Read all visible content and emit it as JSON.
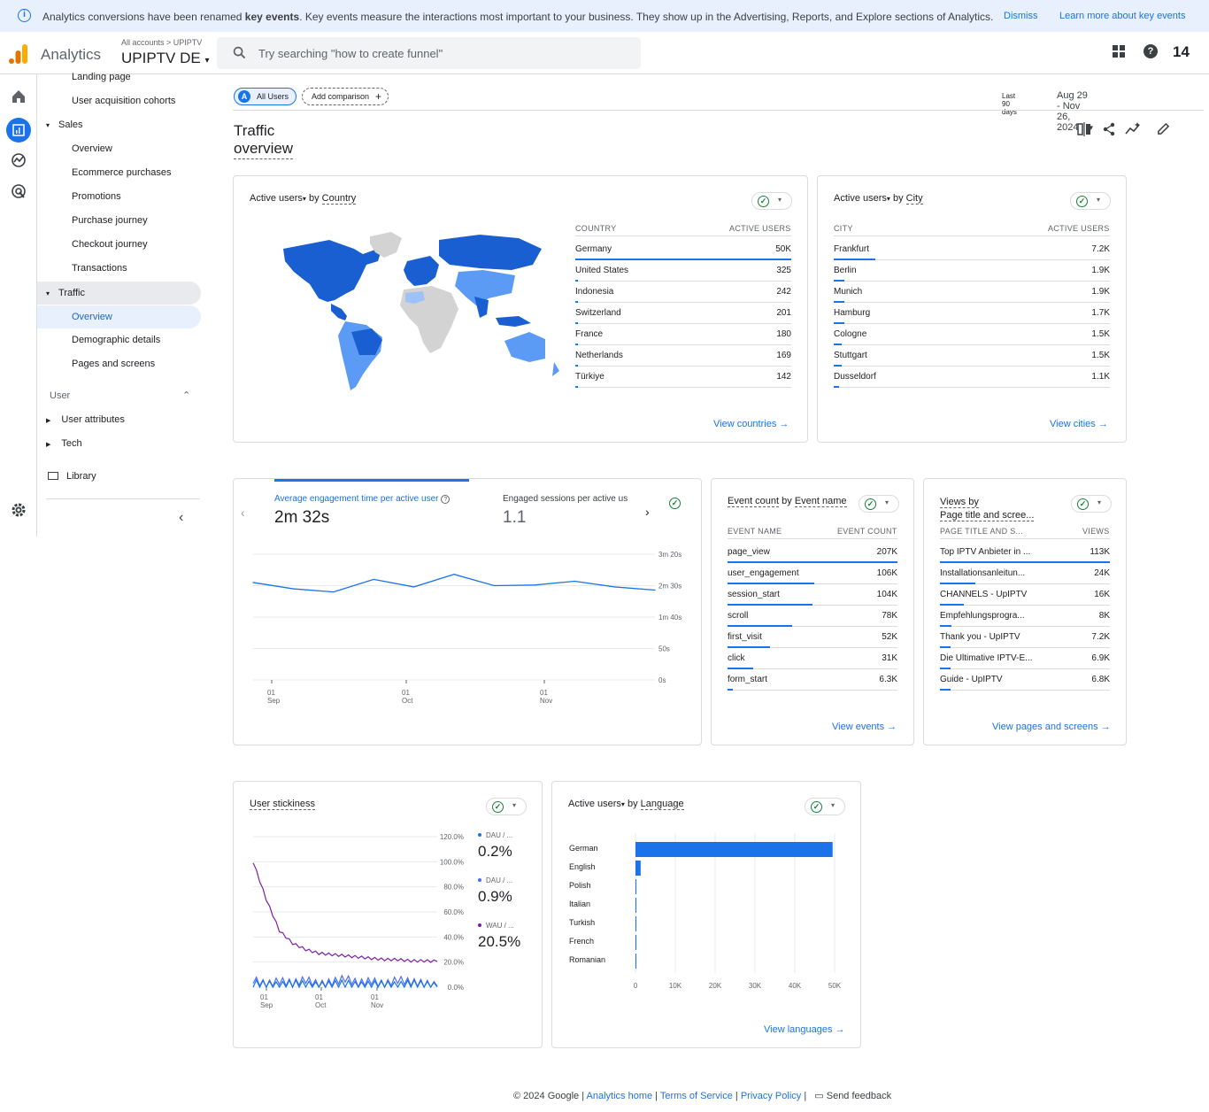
{
  "banner": {
    "text_pre": "Analytics conversions have been renamed ",
    "text_bold": "key events",
    "text_post": ". Key events measure the interactions most important to your business. They show up in the Advertising, Reports, and Explore sections of Analytics.",
    "dismiss": "Dismiss",
    "learn_more": "Learn more about key events"
  },
  "header": {
    "brand": "Analytics",
    "breadcrumb": "All accounts  >  UPIPTV",
    "property": "UPIPTV DE",
    "search_placeholder": "Try searching \"how to create funnel\"",
    "notification_count": "14"
  },
  "nav": {
    "landing_page": "Landing page",
    "user_acq": "User acquisition cohorts",
    "sales": "Sales",
    "sales_overview": "Overview",
    "ecommerce": "Ecommerce purchases",
    "promotions": "Promotions",
    "purchase_journey": "Purchase journey",
    "checkout_journey": "Checkout journey",
    "transactions": "Transactions",
    "traffic": "Traffic",
    "traffic_overview": "Overview",
    "demographic": "Demographic details",
    "pages_screens": "Pages and screens",
    "user_section": "User",
    "user_attributes": "User attributes",
    "tech": "Tech",
    "library": "Library"
  },
  "toolbar": {
    "all_users": "All Users",
    "all_users_badge": "A",
    "add_comparison": "Add comparison",
    "date_label": "Last 90 days",
    "date_range": "Aug 29 - Nov 26, 2024"
  },
  "page": {
    "title": "Traffic overview"
  },
  "country_card": {
    "title_metric": "Active users",
    "title_by": " by ",
    "title_dim": "Country",
    "col1": "COUNTRY",
    "col2": "ACTIVE USERS",
    "rows": [
      {
        "n": "Germany",
        "v": "50K",
        "p": 1.0
      },
      {
        "n": "United States",
        "v": "325",
        "p": 0.01
      },
      {
        "n": "Indonesia",
        "v": "242",
        "p": 0.01
      },
      {
        "n": "Switzerland",
        "v": "201",
        "p": 0.01
      },
      {
        "n": "France",
        "v": "180",
        "p": 0.01
      },
      {
        "n": "Netherlands",
        "v": "169",
        "p": 0.01
      },
      {
        "n": "Türkiye",
        "v": "142",
        "p": 0.01
      }
    ],
    "link": "View countries"
  },
  "city_card": {
    "title_metric": "Active users",
    "title_by": " by ",
    "title_dim": "City",
    "col1": "CITY",
    "col2": "ACTIVE USERS",
    "rows": [
      {
        "n": "Frankfurt",
        "v": "7.2K",
        "p": 0.15
      },
      {
        "n": "Berlin",
        "v": "1.9K",
        "p": 0.04
      },
      {
        "n": "Munich",
        "v": "1.9K",
        "p": 0.04
      },
      {
        "n": "Hamburg",
        "v": "1.7K",
        "p": 0.04
      },
      {
        "n": "Cologne",
        "v": "1.5K",
        "p": 0.03
      },
      {
        "n": "Stuttgart",
        "v": "1.5K",
        "p": 0.03
      },
      {
        "n": "Dusseldorf",
        "v": "1.1K",
        "p": 0.02
      }
    ],
    "link": "View cities"
  },
  "engagement_card": {
    "metric1": "Average engagement time per active user",
    "value1": "2m 32s",
    "metric2": "Engaged sessions per active us",
    "value2": "1.1"
  },
  "event_card": {
    "title_metric": "Event count",
    "title_by": " by ",
    "title_dim": "Event name",
    "col1": "EVENT NAME",
    "col2": "EVENT COUNT",
    "rows": [
      {
        "n": "page_view",
        "v": "207K",
        "p": 1.0
      },
      {
        "n": "user_engagement",
        "v": "106K",
        "p": 0.51
      },
      {
        "n": "session_start",
        "v": "104K",
        "p": 0.5
      },
      {
        "n": "scroll",
        "v": "78K",
        "p": 0.38
      },
      {
        "n": "first_visit",
        "v": "52K",
        "p": 0.25
      },
      {
        "n": "click",
        "v": "31K",
        "p": 0.15
      },
      {
        "n": "form_start",
        "v": "6.3K",
        "p": 0.03
      }
    ],
    "link": "View events"
  },
  "views_card": {
    "title_line1": "Views by",
    "title_line2": "Page title and scree...",
    "col1": "PAGE TITLE AND S...",
    "col2": "VIEWS",
    "rows": [
      {
        "n": "Top IPTV Anbieter in ...",
        "v": "113K",
        "p": 1.0
      },
      {
        "n": "Installationsanleitun...",
        "v": "24K",
        "p": 0.21
      },
      {
        "n": "CHANNELS - UpIPTV",
        "v": "16K",
        "p": 0.14
      },
      {
        "n": "Empfehlungsprogra...",
        "v": "8K",
        "p": 0.07
      },
      {
        "n": "Thank you - UpIPTV",
        "v": "7.2K",
        "p": 0.06
      },
      {
        "n": "Die Ultimative IPTV-E...",
        "v": "6.9K",
        "p": 0.06
      },
      {
        "n": "Guide - UpIPTV",
        "v": "6.8K",
        "p": 0.06
      }
    ],
    "link": "View pages and screens"
  },
  "stickiness_card": {
    "title": "User stickiness",
    "legend": [
      {
        "label": "DAU / ...",
        "value": "0.2%",
        "color": "#1a73e8"
      },
      {
        "label": "DAU / ...",
        "value": "0.9%",
        "color": "#4c6ef5"
      },
      {
        "label": "WAU / ...",
        "value": "20.5%",
        "color": "#7b1fa2"
      }
    ]
  },
  "language_card": {
    "title_metric": "Active users",
    "title_by": " by ",
    "title_dim": "Language",
    "link": "View languages"
  },
  "chart_data": [
    {
      "type": "line",
      "title": "Average engagement time per active user",
      "x": [
        "Aug 29",
        "Sep 7",
        "Sep 16",
        "Sep 25",
        "Oct 4",
        "Oct 13",
        "Oct 22",
        "Oct 31",
        "Nov 9",
        "Nov 18",
        "Nov 26"
      ],
      "values": [
        155,
        145,
        140,
        160,
        148,
        168,
        150,
        151,
        157,
        148,
        143
      ],
      "ytick_labels": [
        "3m 20s",
        "2m 30s",
        "1m 40s",
        "50s",
        "0s"
      ],
      "xtick_labels": [
        {
          "d": "01",
          "m": "Sep"
        },
        {
          "d": "01",
          "m": "Oct"
        },
        {
          "d": "01",
          "m": "Nov"
        }
      ],
      "ylim": [
        0,
        200
      ],
      "color": "#1a73e8"
    },
    {
      "type": "line",
      "title": "User stickiness",
      "ytick_labels": [
        "120.0%",
        "100.0%",
        "80.0%",
        "60.0%",
        "40.0%",
        "20.0%",
        "0.0%"
      ],
      "xtick_labels": [
        {
          "d": "01",
          "m": "Sep"
        },
        {
          "d": "01",
          "m": "Oct"
        },
        {
          "d": "01",
          "m": "Nov"
        }
      ],
      "ylim": [
        0,
        120
      ],
      "series": [
        {
          "name": "WAU / MAU",
          "color": "#7b1fa2",
          "values": [
            100,
            70,
            45,
            35,
            30,
            27,
            26,
            25,
            24,
            23,
            22,
            22,
            21,
            21,
            20.5
          ]
        },
        {
          "name": "DAU / MAU",
          "color": "#4c6ef5",
          "values": [
            6,
            2,
            5,
            3,
            6,
            2,
            4,
            7,
            3,
            5,
            2,
            6,
            4,
            3,
            0.9
          ]
        },
        {
          "name": "DAU / WAU",
          "color": "#1a73e8",
          "values": [
            3,
            2,
            1,
            3,
            2,
            1,
            2,
            3,
            1,
            2,
            2,
            1,
            3,
            2,
            0.2
          ]
        }
      ]
    },
    {
      "type": "bar",
      "title": "Active users by Language",
      "categories": [
        "German",
        "English",
        "Polish",
        "Italian",
        "Turkish",
        "French",
        "Romanian"
      ],
      "values": [
        49500,
        1300,
        120,
        90,
        70,
        60,
        40
      ],
      "xtick_labels": [
        "0",
        "10K",
        "20K",
        "30K",
        "40K",
        "50K"
      ],
      "xlim": [
        0,
        50000
      ],
      "color": "#1a73e8"
    }
  ],
  "footer": {
    "copyright": "© 2024 Google | ",
    "home": "Analytics home",
    "sep1": " | ",
    "tos": "Terms of Service",
    "sep2": " | ",
    "privacy": "Privacy Policy",
    "sep3": " | ",
    "feedback": "Send feedback"
  }
}
